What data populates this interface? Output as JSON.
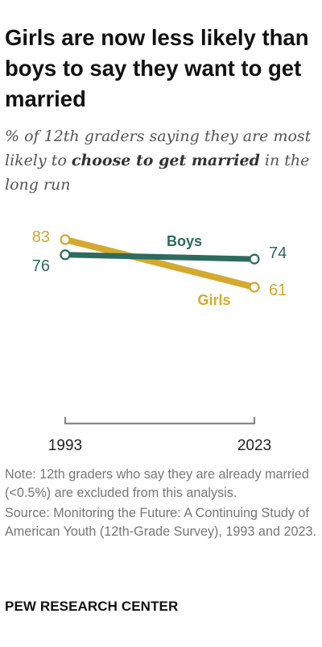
{
  "title": "Girls are now less likely than boys to say they want to get married",
  "subtitle": {
    "prefix": "% of 12th graders saying they are most likely to ",
    "emphasis": "choose to get married",
    "suffix": " in the long run"
  },
  "colors": {
    "boys": "#2d6b5e",
    "girls": "#d4a92f",
    "axis": "#888888"
  },
  "chart_data": {
    "type": "line",
    "x": [
      "1993",
      "2023"
    ],
    "series": [
      {
        "name": "Boys",
        "values": [
          76,
          74
        ]
      },
      {
        "name": "Girls",
        "values": [
          83,
          61
        ]
      }
    ],
    "value_labels": {
      "Boys": [
        "76",
        "74"
      ],
      "Girls": [
        "83",
        "61"
      ]
    },
    "xlabel": "",
    "ylabel": ""
  },
  "note": "Note: 12th graders who say they are already married (<0.5%) are excluded from this analysis.",
  "source": "Source: Monitoring the Future: A Continuing Study of American Youth (12th-Grade Survey), 1993 and 2023.",
  "brand": "PEW RESEARCH CENTER"
}
